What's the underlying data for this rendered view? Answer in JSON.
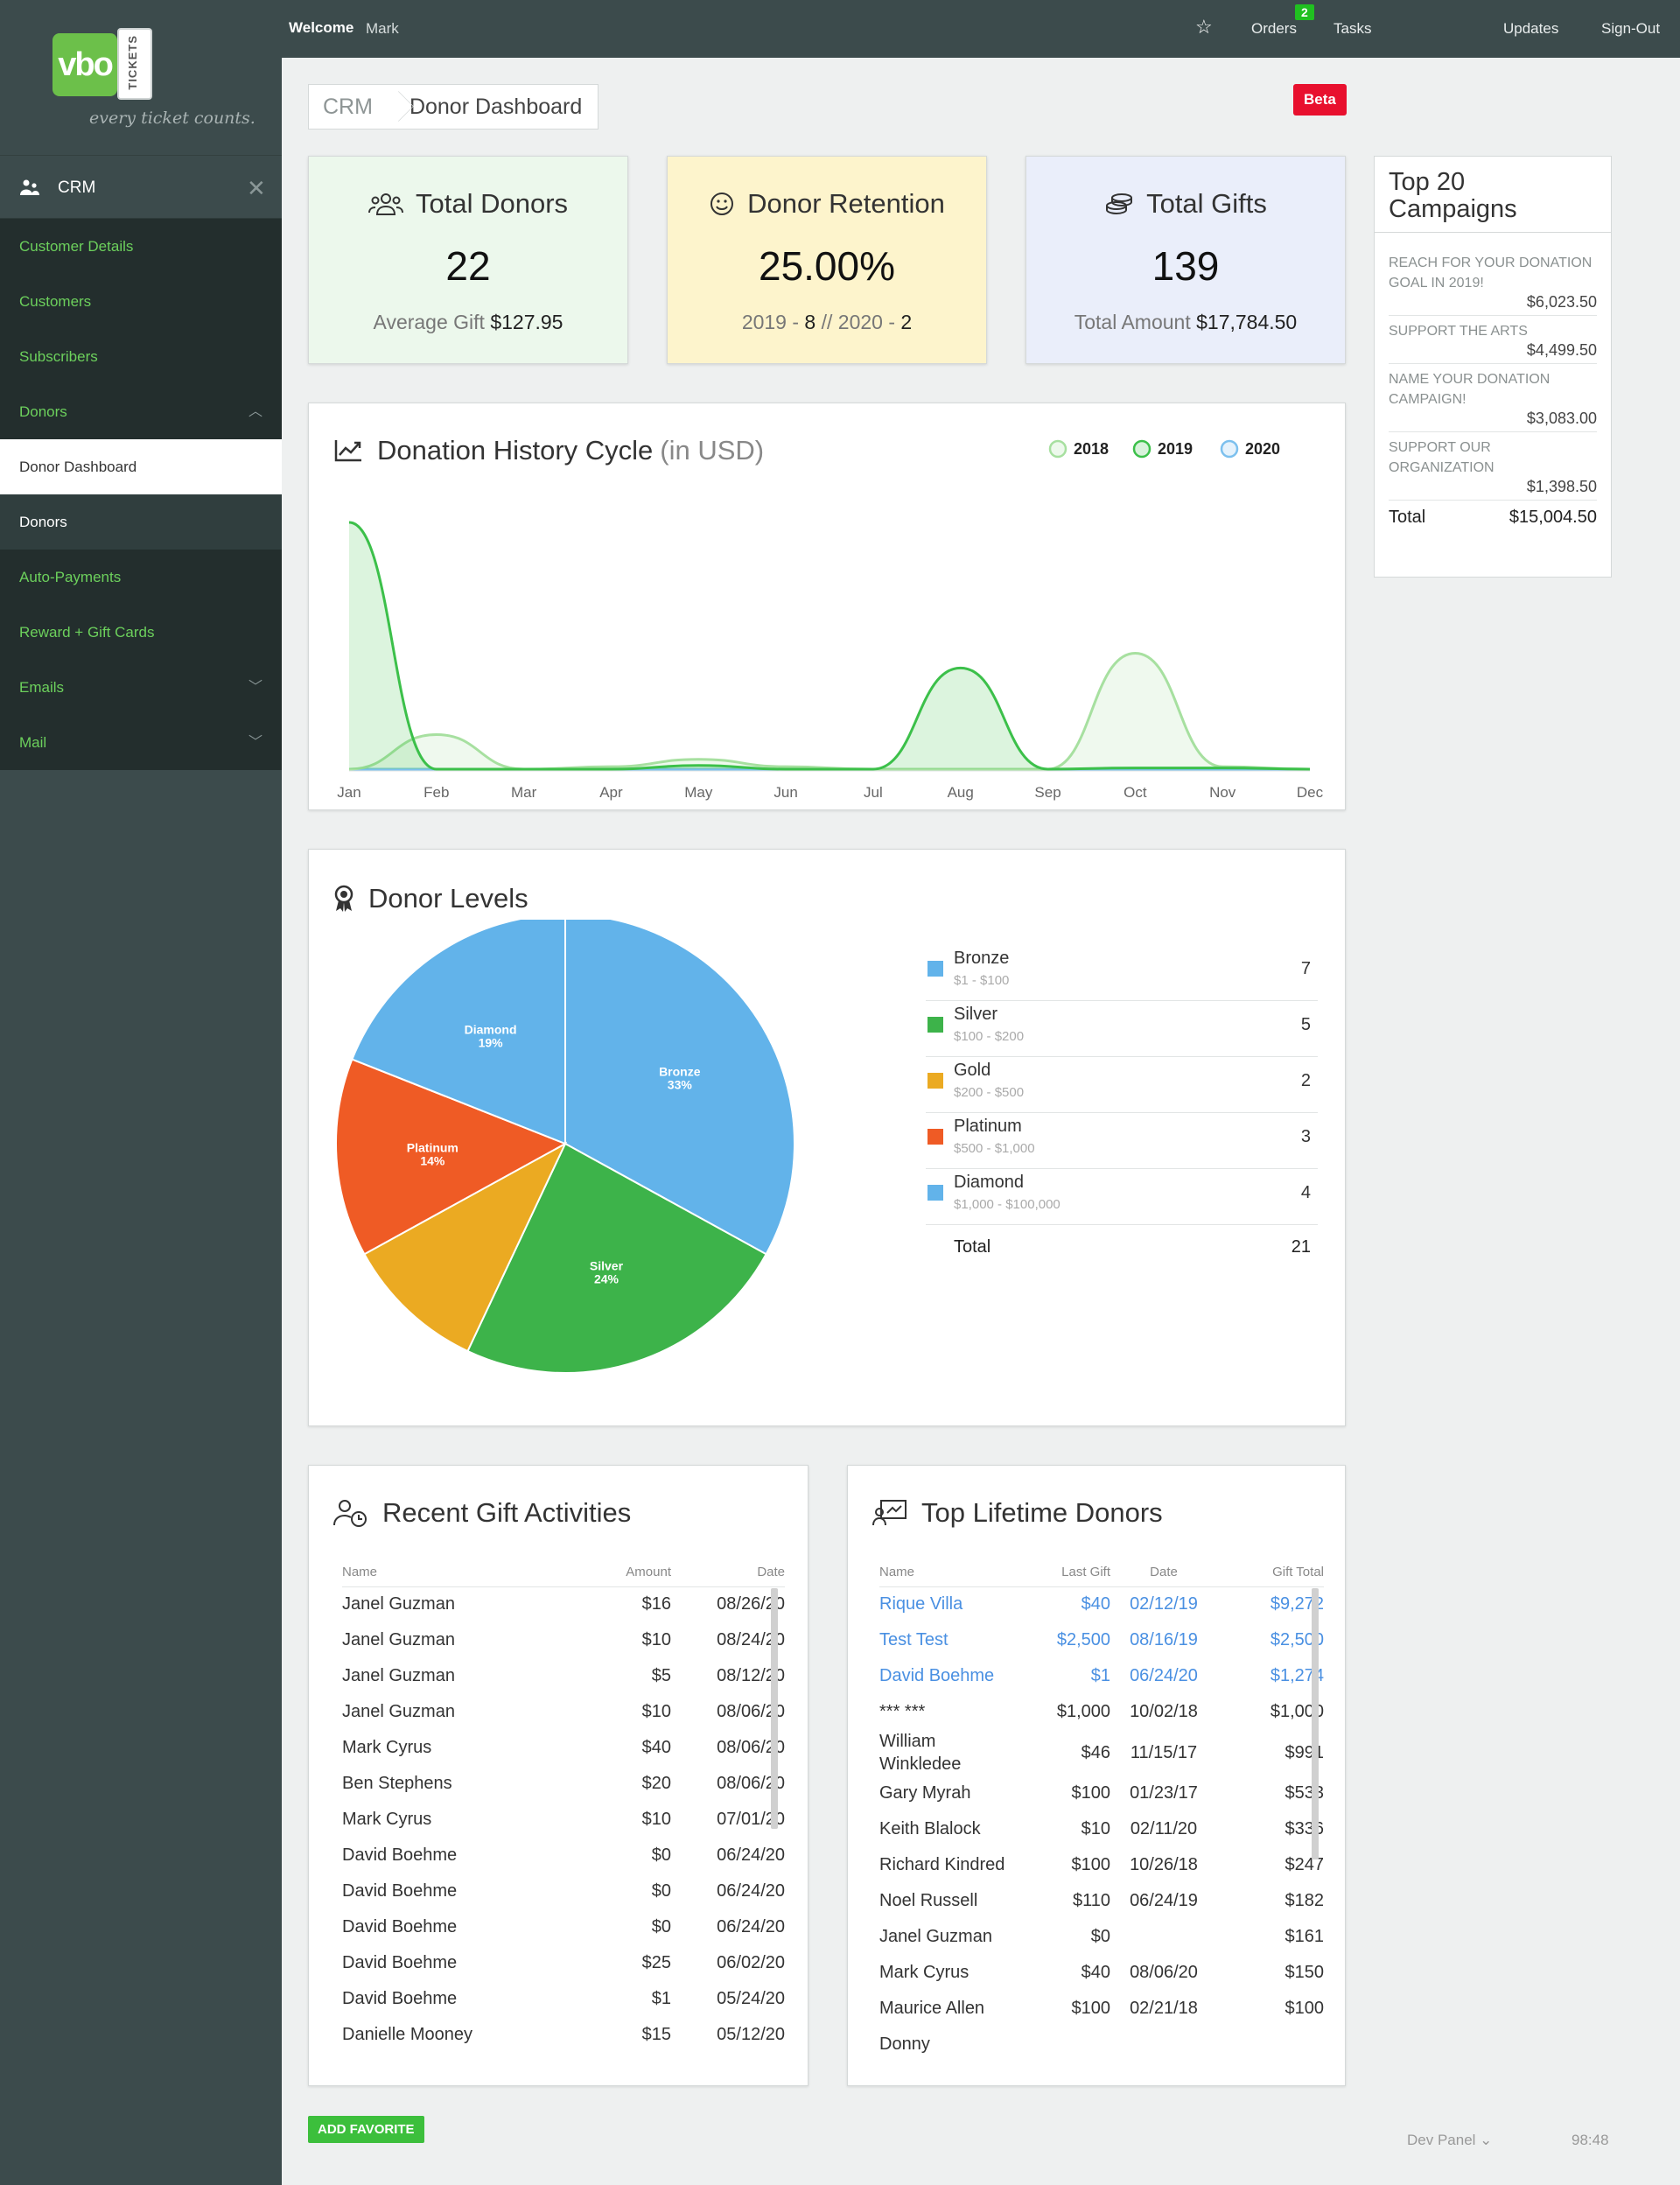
{
  "brand": {
    "logo_text": "vbo",
    "logo_tab": "TICKETS",
    "tagline": "every ticket counts."
  },
  "header": {
    "welcome": "Welcome",
    "user": "Mark",
    "orders": "Orders",
    "orders_badge": "2",
    "tasks": "Tasks",
    "updates": "Updates",
    "signout": "Sign-Out"
  },
  "sidebar": {
    "section": "CRM",
    "items": [
      {
        "label": "Customer Details"
      },
      {
        "label": "Customers"
      },
      {
        "label": "Subscribers"
      },
      {
        "label": "Donors"
      },
      {
        "label": "Donor Dashboard"
      },
      {
        "label": "Donors"
      },
      {
        "label": "Auto-Payments"
      },
      {
        "label": "Reward + Gift Cards"
      },
      {
        "label": "Emails"
      },
      {
        "label": "Mail"
      }
    ]
  },
  "breadcrumb": {
    "root": "CRM",
    "current": "Donor Dashboard"
  },
  "beta": "Beta",
  "stats": {
    "donors": {
      "title": "Total Donors",
      "value": "22",
      "foot_label": "Average Gift",
      "foot_value": "$127.95"
    },
    "retention": {
      "title": "Donor Retention",
      "value": "25.00%",
      "y1": "2019 - ",
      "v1": "8",
      "sep": " // ",
      "y2": "2020 - ",
      "v2": "2"
    },
    "gifts": {
      "title": "Total Gifts",
      "value": "139",
      "foot_label": "Total Amount",
      "foot_value": "$17,784.50"
    }
  },
  "campaigns": {
    "title": "Top 20 Campaigns",
    "items": [
      {
        "name": "REACH FOR YOUR DONATION GOAL IN 2019!",
        "amount": "$6,023.50"
      },
      {
        "name": "SUPPORT THE ARTS",
        "amount": "$4,499.50"
      },
      {
        "name": "NAME YOUR DONATION CAMPAIGN!",
        "amount": "$3,083.00"
      },
      {
        "name": "SUPPORT OUR ORGANIZATION",
        "amount": "$1,398.50"
      }
    ],
    "total_label": "Total",
    "total": "$15,004.50"
  },
  "history": {
    "title": "Donation History Cycle",
    "unit": "(in USD)"
  },
  "levels": {
    "title": "Donor Levels",
    "rows": [
      {
        "name": "Bronze",
        "range": "$1 - $100",
        "count": "7",
        "color": "#62b3ea"
      },
      {
        "name": "Silver",
        "range": "$100 - $200",
        "count": "5",
        "color": "#3db34a"
      },
      {
        "name": "Gold",
        "range": "$200 - $500",
        "count": "2",
        "color": "#ebaa22"
      },
      {
        "name": "Platinum",
        "range": "$500 - $1,000",
        "count": "3",
        "color": "#ef5b25"
      },
      {
        "name": "Diamond",
        "range": "$1,000 - $100,000",
        "count": "4",
        "color": "#62b3ea"
      }
    ],
    "total_label": "Total",
    "total": "21"
  },
  "chart_data": [
    {
      "type": "area",
      "title": "Donation History Cycle",
      "categories": [
        "Jan",
        "Feb",
        "Mar",
        "Apr",
        "May",
        "Jun",
        "Jul",
        "Aug",
        "Sep",
        "Oct",
        "Nov",
        "Dec"
      ],
      "legend_position": "top-right",
      "grid": false,
      "series": [
        {
          "name": "2018",
          "color": "#a7e0a0",
          "values": [
            0,
            140,
            0,
            10,
            40,
            10,
            0,
            0,
            0,
            470,
            10,
            0
          ]
        },
        {
          "name": "2019",
          "color": "#3cc04a",
          "values": [
            1000,
            0,
            0,
            0,
            15,
            0,
            0,
            410,
            0,
            5,
            5,
            0
          ]
        },
        {
          "name": "2020",
          "color": "#7cc0ee",
          "values": [
            0,
            0,
            0,
            0,
            0,
            0,
            0,
            0,
            0,
            0,
            0,
            0
          ]
        }
      ]
    },
    {
      "type": "pie",
      "title": "Donor Levels",
      "slices": [
        {
          "label": "Bronze",
          "value": 33,
          "display": "33%",
          "color": "#62b3ea"
        },
        {
          "label": "Silver",
          "value": 24,
          "display": "24%",
          "color": "#3db34a"
        },
        {
          "label": "Gold",
          "value": 10,
          "display": "",
          "color": "#ebaa22"
        },
        {
          "label": "Platinum",
          "value": 14,
          "display": "14%",
          "color": "#ef5b25"
        },
        {
          "label": "Diamond",
          "value": 19,
          "display": "19%",
          "color": "#62b3ea"
        }
      ]
    }
  ],
  "recent": {
    "title": "Recent Gift Activities",
    "cols": [
      "Name",
      "Amount",
      "Date"
    ],
    "rows": [
      [
        "Janel Guzman",
        "$16",
        "08/26/20"
      ],
      [
        "Janel Guzman",
        "$10",
        "08/24/20"
      ],
      [
        "Janel Guzman",
        "$5",
        "08/12/20"
      ],
      [
        "Janel Guzman",
        "$10",
        "08/06/20"
      ],
      [
        "Mark Cyrus",
        "$40",
        "08/06/20"
      ],
      [
        "Ben Stephens",
        "$20",
        "08/06/20"
      ],
      [
        "Mark Cyrus",
        "$10",
        "07/01/20"
      ],
      [
        "David Boehme",
        "$0",
        "06/24/20"
      ],
      [
        "David Boehme",
        "$0",
        "06/24/20"
      ],
      [
        "David Boehme",
        "$0",
        "06/24/20"
      ],
      [
        "David Boehme",
        "$25",
        "06/02/20"
      ],
      [
        "David Boehme",
        "$1",
        "05/24/20"
      ],
      [
        "Danielle Mooney",
        "$15",
        "05/12/20"
      ]
    ]
  },
  "lifetime": {
    "title": "Top Lifetime Donors",
    "cols": [
      "Name",
      "Last Gift",
      "Date",
      "Gift Total"
    ],
    "rows": [
      [
        "Rique Villa",
        "$40",
        "02/12/19",
        "$9,272"
      ],
      [
        "Test Test",
        "$2,500",
        "08/16/19",
        "$2,500"
      ],
      [
        "David Boehme",
        "$1",
        "06/24/20",
        "$1,274"
      ],
      [
        "*** ***",
        "$1,000",
        "10/02/18",
        "$1,000"
      ],
      [
        "William Winkledee",
        "$46",
        "11/15/17",
        "$991"
      ],
      [
        "Gary Myrah",
        "$100",
        "01/23/17",
        "$533"
      ],
      [
        "Keith Blalock",
        "$10",
        "02/11/20",
        "$336"
      ],
      [
        "Richard Kindred",
        "$100",
        "10/26/18",
        "$247"
      ],
      [
        "Noel Russell",
        "$110",
        "06/24/19",
        "$182"
      ],
      [
        "Janel Guzman",
        "$0",
        "",
        "$161"
      ],
      [
        "Mark Cyrus",
        "$40",
        "08/06/20",
        "$150"
      ],
      [
        "Maurice Allen",
        "$100",
        "02/21/18",
        "$100"
      ],
      [
        "Donny",
        "",
        "",
        ""
      ]
    ]
  },
  "footer": {
    "add_favorite": "ADD FAVORITE",
    "dev_panel": "Dev Panel ⌄",
    "clock": "98:48"
  }
}
